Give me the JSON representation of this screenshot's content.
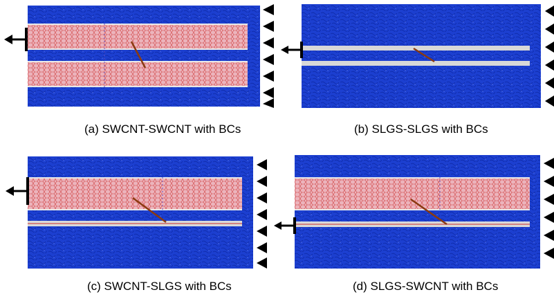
{
  "figure": {
    "panels": [
      {
        "id": "a",
        "caption": "(a) SWCNT-SWCNT with BCs"
      },
      {
        "id": "b",
        "caption": "(b) SLGS-SLGS with BCs"
      },
      {
        "id": "c",
        "caption": "(c) SWCNT-SLGS with BCs"
      },
      {
        "id": "d",
        "caption": "(d) SLGS-SWCNT with BCs"
      }
    ]
  },
  "colors": {
    "matrix_blue": "#1c3fd0",
    "matrix_dark": "#0a1f8a",
    "cnt_fill": "#e8a8b0",
    "cnt_stripe": "#cc2a2a",
    "sheet_fill": "#d8d8d8",
    "bond_line": "#8a3a10",
    "support": "#000000"
  }
}
